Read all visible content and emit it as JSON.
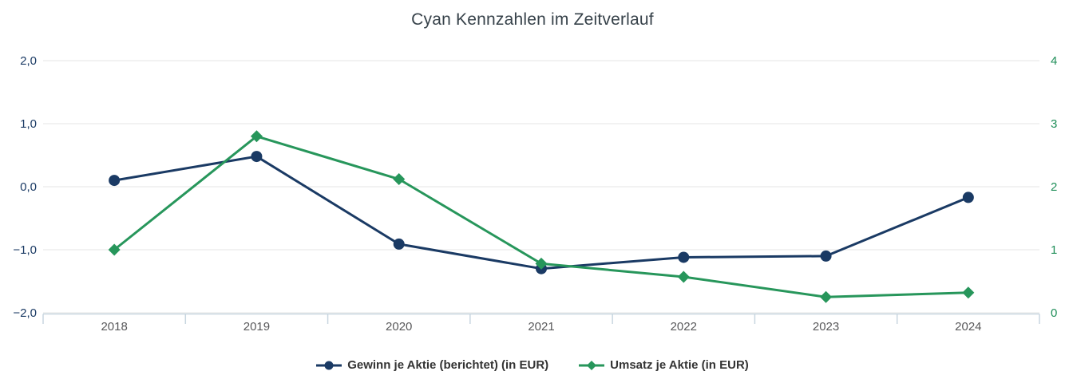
{
  "chart_data": {
    "type": "line",
    "title": "Cyan Kennzahlen im Zeitverlauf",
    "categories": [
      "2018",
      "2019",
      "2020",
      "2021",
      "2022",
      "2023",
      "2024"
    ],
    "series": [
      {
        "name": "Gewinn je Aktie (berichtet) (in EUR)",
        "axis": "left",
        "color": "#1a3a64",
        "marker": "circle",
        "values": [
          0.1,
          0.48,
          -0.91,
          -1.3,
          -1.12,
          -1.1,
          -0.17
        ]
      },
      {
        "name": "Umsatz je Aktie (in EUR)",
        "axis": "right",
        "color": "#27965b",
        "marker": "diamond",
        "values": [
          1.0,
          2.8,
          2.12,
          0.78,
          0.57,
          0.25,
          0.32
        ]
      }
    ],
    "left_axis": {
      "ticks": [
        "2,0",
        "1,0",
        "0,0",
        "−1,0",
        "−2,0"
      ],
      "min": -2,
      "max": 2,
      "color": "#1a3a64"
    },
    "right_axis": {
      "ticks": [
        "4",
        "3",
        "2",
        "1",
        "0"
      ],
      "min": 0,
      "max": 4,
      "color": "#1e8e58"
    },
    "x_axis": {
      "label_color": "#58585a"
    },
    "grid": true,
    "grid_color": "#e6e6e6",
    "axis_band_color": "#c8d6e0",
    "legend_position": "bottom",
    "legend_text_color": "#333333",
    "background_color": "#ffffff"
  }
}
